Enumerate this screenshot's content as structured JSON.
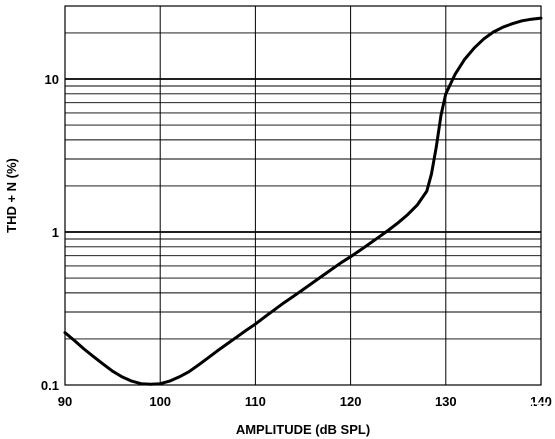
{
  "chart_data": {
    "type": "line",
    "title": "",
    "xlabel": "AMPLITUDE (dB SPL)",
    "ylabel": "THD + N (%)",
    "xlim": [
      90,
      140
    ],
    "ylim": [
      0.1,
      30
    ],
    "yscale": "log",
    "grid": true,
    "x_ticks": [
      "90",
      "100",
      "110",
      "120",
      "130",
      "140"
    ],
    "y_ticks": [
      "0.1",
      "1",
      "10"
    ],
    "series": [
      {
        "x": [
          90,
          91,
          92,
          93,
          94,
          95,
          96,
          97,
          98,
          99,
          100,
          101,
          102,
          103,
          104,
          105,
          106,
          107,
          108,
          109,
          110,
          111,
          112,
          113,
          114,
          115,
          116,
          117,
          118,
          119,
          120,
          121,
          122,
          123,
          124,
          125,
          126,
          127,
          128,
          128.5,
          129,
          129.5,
          130,
          131,
          132,
          133,
          134,
          135,
          136,
          137,
          138,
          139,
          140
        ],
        "values": [
          0.22,
          0.195,
          0.172,
          0.153,
          0.137,
          0.123,
          0.113,
          0.106,
          0.102,
          0.101,
          0.102,
          0.106,
          0.113,
          0.122,
          0.135,
          0.15,
          0.167,
          0.185,
          0.205,
          0.227,
          0.25,
          0.279,
          0.31,
          0.345,
          0.38,
          0.42,
          0.465,
          0.515,
          0.57,
          0.63,
          0.69,
          0.76,
          0.84,
          0.93,
          1.03,
          1.15,
          1.3,
          1.5,
          1.85,
          2.4,
          3.6,
          5.8,
          8.0,
          10.8,
          13.5,
          16.0,
          18.3,
          20.3,
          21.8,
          23.0,
          24.0,
          24.6,
          25.0
        ]
      }
    ]
  },
  "watermark": "音频应用"
}
